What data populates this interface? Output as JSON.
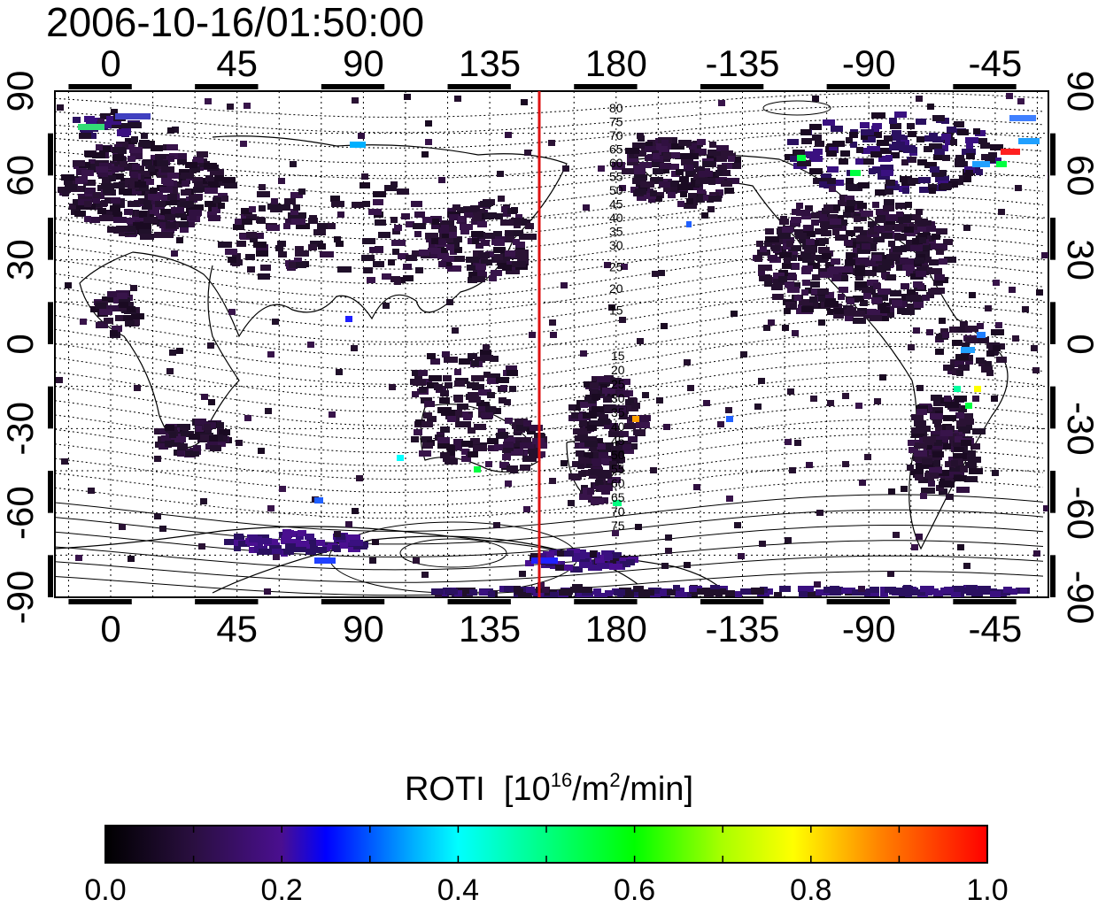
{
  "timestamp": "2006-10-16/01:50:00",
  "map": {
    "lon_ticks": [
      "0",
      "45",
      "90",
      "135",
      "180",
      "-135",
      "-90",
      "-45"
    ],
    "lat_ticks": [
      "90",
      "60",
      "30",
      "0",
      "-30",
      "-60",
      "-90"
    ],
    "red_line_longitude": 150,
    "mag_lat_labels_north": [
      "80",
      "75",
      "70",
      "65",
      "60",
      "55",
      "50",
      "45",
      "40",
      "35",
      "30",
      "25",
      "20",
      "15"
    ],
    "mag_lat_labels_south": [
      "15",
      "20",
      "25",
      "30",
      "35",
      "40",
      "45",
      "50",
      "55",
      "60",
      "65",
      "70",
      "75"
    ],
    "colors": {
      "frame": "#000000",
      "red_line": "#dd1111",
      "data_dark": "#2a1030"
    }
  },
  "colorbar": {
    "title": "ROTI",
    "unit_prefix": "[10",
    "unit_exp": "16",
    "unit_mid": "/m",
    "unit_exp2": "2",
    "unit_suffix": "/min]",
    "ticks": [
      "0.0",
      "0.2",
      "0.4",
      "0.6",
      "0.8",
      "1.0"
    ],
    "scale": [
      "#000000",
      "#2a0f40",
      "#4a0f80",
      "#0000ff",
      "#00b0ff",
      "#00ffff",
      "#00ff80",
      "#00ff00",
      "#80ff00",
      "#ffff00",
      "#ff8000",
      "#ff0000"
    ]
  }
}
